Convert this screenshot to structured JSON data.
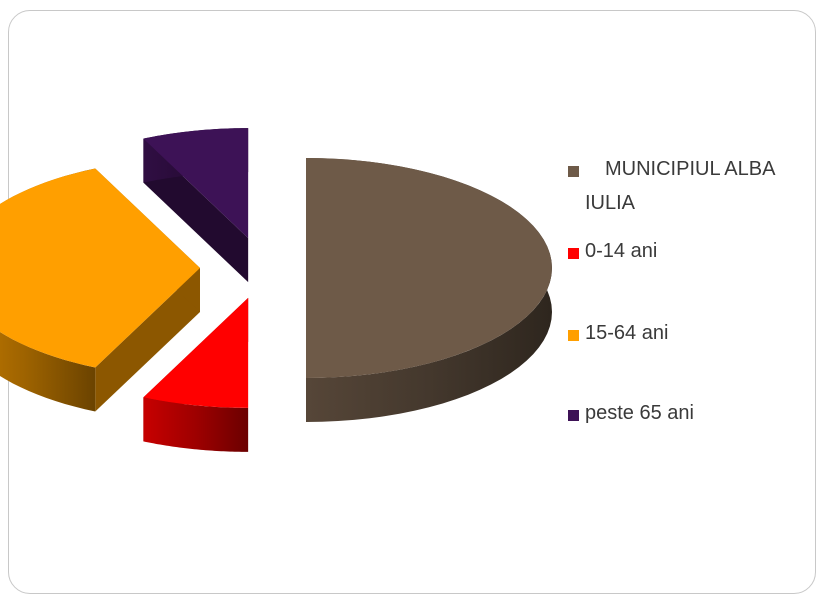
{
  "chart_data": {
    "type": "pie",
    "style": "3d-exploded",
    "title": "",
    "categories": [
      "MUNICIPIUL ALBA IULIA",
      "0-14 ani",
      "15-64 ani",
      "peste 65 ani"
    ],
    "values": [
      50,
      7,
      36,
      7
    ],
    "colors": [
      "#6e5a48",
      "#ff0000",
      "#ff9f00",
      "#3d1256"
    ],
    "legend_position": "right"
  }
}
